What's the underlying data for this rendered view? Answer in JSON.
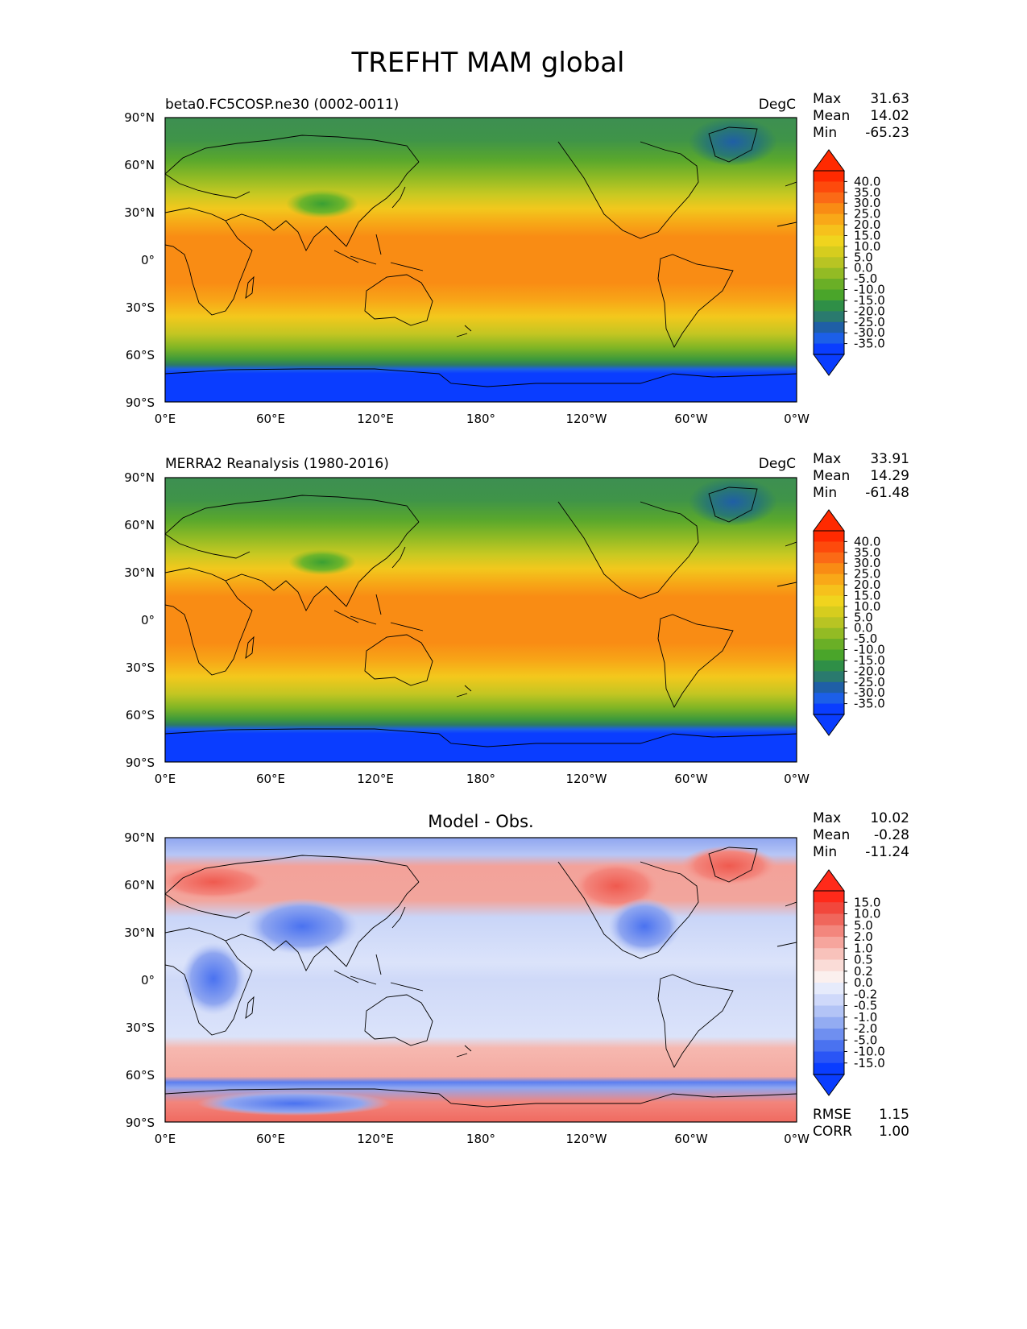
{
  "title": "TREFHT MAM global",
  "chart_data": [
    {
      "type": "heatmap",
      "title": "beta0.FC5COSP.ne30 (0002-0011)",
      "units": "DegC",
      "stats": [
        {
          "label": "Max",
          "value": "31.63"
        },
        {
          "label": "Mean",
          "value": "14.02"
        },
        {
          "label": "Min",
          "value": "-65.23"
        }
      ],
      "x_ticks": [
        "0°E",
        "60°E",
        "120°E",
        "180°",
        "120°W",
        "60°W",
        "0°W"
      ],
      "y_ticks": [
        "90°N",
        "60°N",
        "30°N",
        "0°",
        "30°S",
        "60°S",
        "90°S"
      ],
      "xlim": [
        0,
        360
      ],
      "ylim": [
        -90,
        90
      ],
      "colorbar": {
        "labels": [
          "40.0",
          "35.0",
          "30.0",
          "25.0",
          "20.0",
          "15.0",
          "10.0",
          "5.0",
          "0.0",
          "-5.0",
          "-10.0",
          "-15.0",
          "-20.0",
          "-25.0",
          "-30.0",
          "-35.0"
        ],
        "colors": [
          "#ff2a00",
          "#fd4a0c",
          "#fb6a16",
          "#f98c14",
          "#f9a818",
          "#f6c11c",
          "#f0d41e",
          "#d6cd1e",
          "#b8c423",
          "#93bb24",
          "#6aaf26",
          "#4aa52a",
          "#2f8f47",
          "#2a7a6e",
          "#1f5fa6",
          "#1c5fe8",
          "#0a3dff"
        ],
        "over_color": "#ff2a00",
        "under_color": "#0a3dff"
      },
      "field_summary": {
        "lat_bands": [
          90,
          60,
          30,
          0,
          -30,
          -60,
          -90
        ],
        "zonal_mean_degC": [
          -25,
          -5,
          20,
          27,
          20,
          0,
          -55
        ]
      }
    },
    {
      "type": "heatmap",
      "title": "MERRA2 Reanalysis (1980-2016)",
      "units": "DegC",
      "stats": [
        {
          "label": "Max",
          "value": "33.91"
        },
        {
          "label": "Mean",
          "value": "14.29"
        },
        {
          "label": "Min",
          "value": "-61.48"
        }
      ],
      "x_ticks": [
        "0°E",
        "60°E",
        "120°E",
        "180°",
        "120°W",
        "60°W",
        "0°W"
      ],
      "y_ticks": [
        "90°N",
        "60°N",
        "30°N",
        "0°",
        "30°S",
        "60°S",
        "90°S"
      ],
      "xlim": [
        0,
        360
      ],
      "ylim": [
        -90,
        90
      ],
      "colorbar": {
        "labels": [
          "40.0",
          "35.0",
          "30.0",
          "25.0",
          "20.0",
          "15.0",
          "10.0",
          "5.0",
          "0.0",
          "-5.0",
          "-10.0",
          "-15.0",
          "-20.0",
          "-25.0",
          "-30.0",
          "-35.0"
        ],
        "colors": [
          "#ff2a00",
          "#fd4a0c",
          "#fb6a16",
          "#f98c14",
          "#f9a818",
          "#f6c11c",
          "#f0d41e",
          "#d6cd1e",
          "#b8c423",
          "#93bb24",
          "#6aaf26",
          "#4aa52a",
          "#2f8f47",
          "#2a7a6e",
          "#1f5fa6",
          "#1c5fe8",
          "#0a3dff"
        ],
        "over_color": "#ff2a00",
        "under_color": "#0a3dff"
      },
      "field_summary": {
        "lat_bands": [
          90,
          60,
          30,
          0,
          -30,
          -60,
          -90
        ],
        "zonal_mean_degC": [
          -25,
          -5,
          20,
          27,
          20,
          0,
          -55
        ]
      }
    },
    {
      "type": "heatmap",
      "title": "Model - Obs.",
      "units": "",
      "stats": [
        {
          "label": "Max",
          "value": "10.02"
        },
        {
          "label": "Mean",
          "value": "-0.28"
        },
        {
          "label": "Min",
          "value": "-11.24"
        }
      ],
      "metrics": [
        {
          "label": "RMSE",
          "value": "1.15"
        },
        {
          "label": "CORR",
          "value": "1.00"
        }
      ],
      "x_ticks": [
        "0°E",
        "60°E",
        "120°E",
        "180°",
        "120°W",
        "60°W",
        "0°W"
      ],
      "y_ticks": [
        "90°N",
        "60°N",
        "30°N",
        "0°",
        "30°S",
        "60°S",
        "90°S"
      ],
      "xlim": [
        0,
        360
      ],
      "ylim": [
        -90,
        90
      ],
      "colorbar": {
        "labels": [
          "15.0",
          "10.0",
          "5.0",
          "2.0",
          "1.0",
          "0.5",
          "0.2",
          "0.0",
          "-0.2",
          "-0.5",
          "-1.0",
          "-2.0",
          "-5.0",
          "-10.0",
          "-15.0"
        ],
        "colors": [
          "#ff2a1a",
          "#f2473c",
          "#f0665c",
          "#f3867d",
          "#f6a59d",
          "#f8c2bb",
          "#fadcd7",
          "#fbf0ee",
          "#e6ebfb",
          "#cfd9fa",
          "#b3c4f6",
          "#93acf2",
          "#6f8ff0",
          "#4a72f0",
          "#2a55f6",
          "#0a3dff"
        ],
        "over_color": "#ff2a1a",
        "under_color": "#0a3dff"
      },
      "field_summary": {
        "lat_bands": [
          90,
          60,
          30,
          0,
          -30,
          -60,
          -90
        ],
        "zonal_mean_diff_degC": [
          -1.0,
          1.0,
          -0.5,
          -0.5,
          -0.5,
          0.5,
          1.0
        ]
      }
    }
  ]
}
